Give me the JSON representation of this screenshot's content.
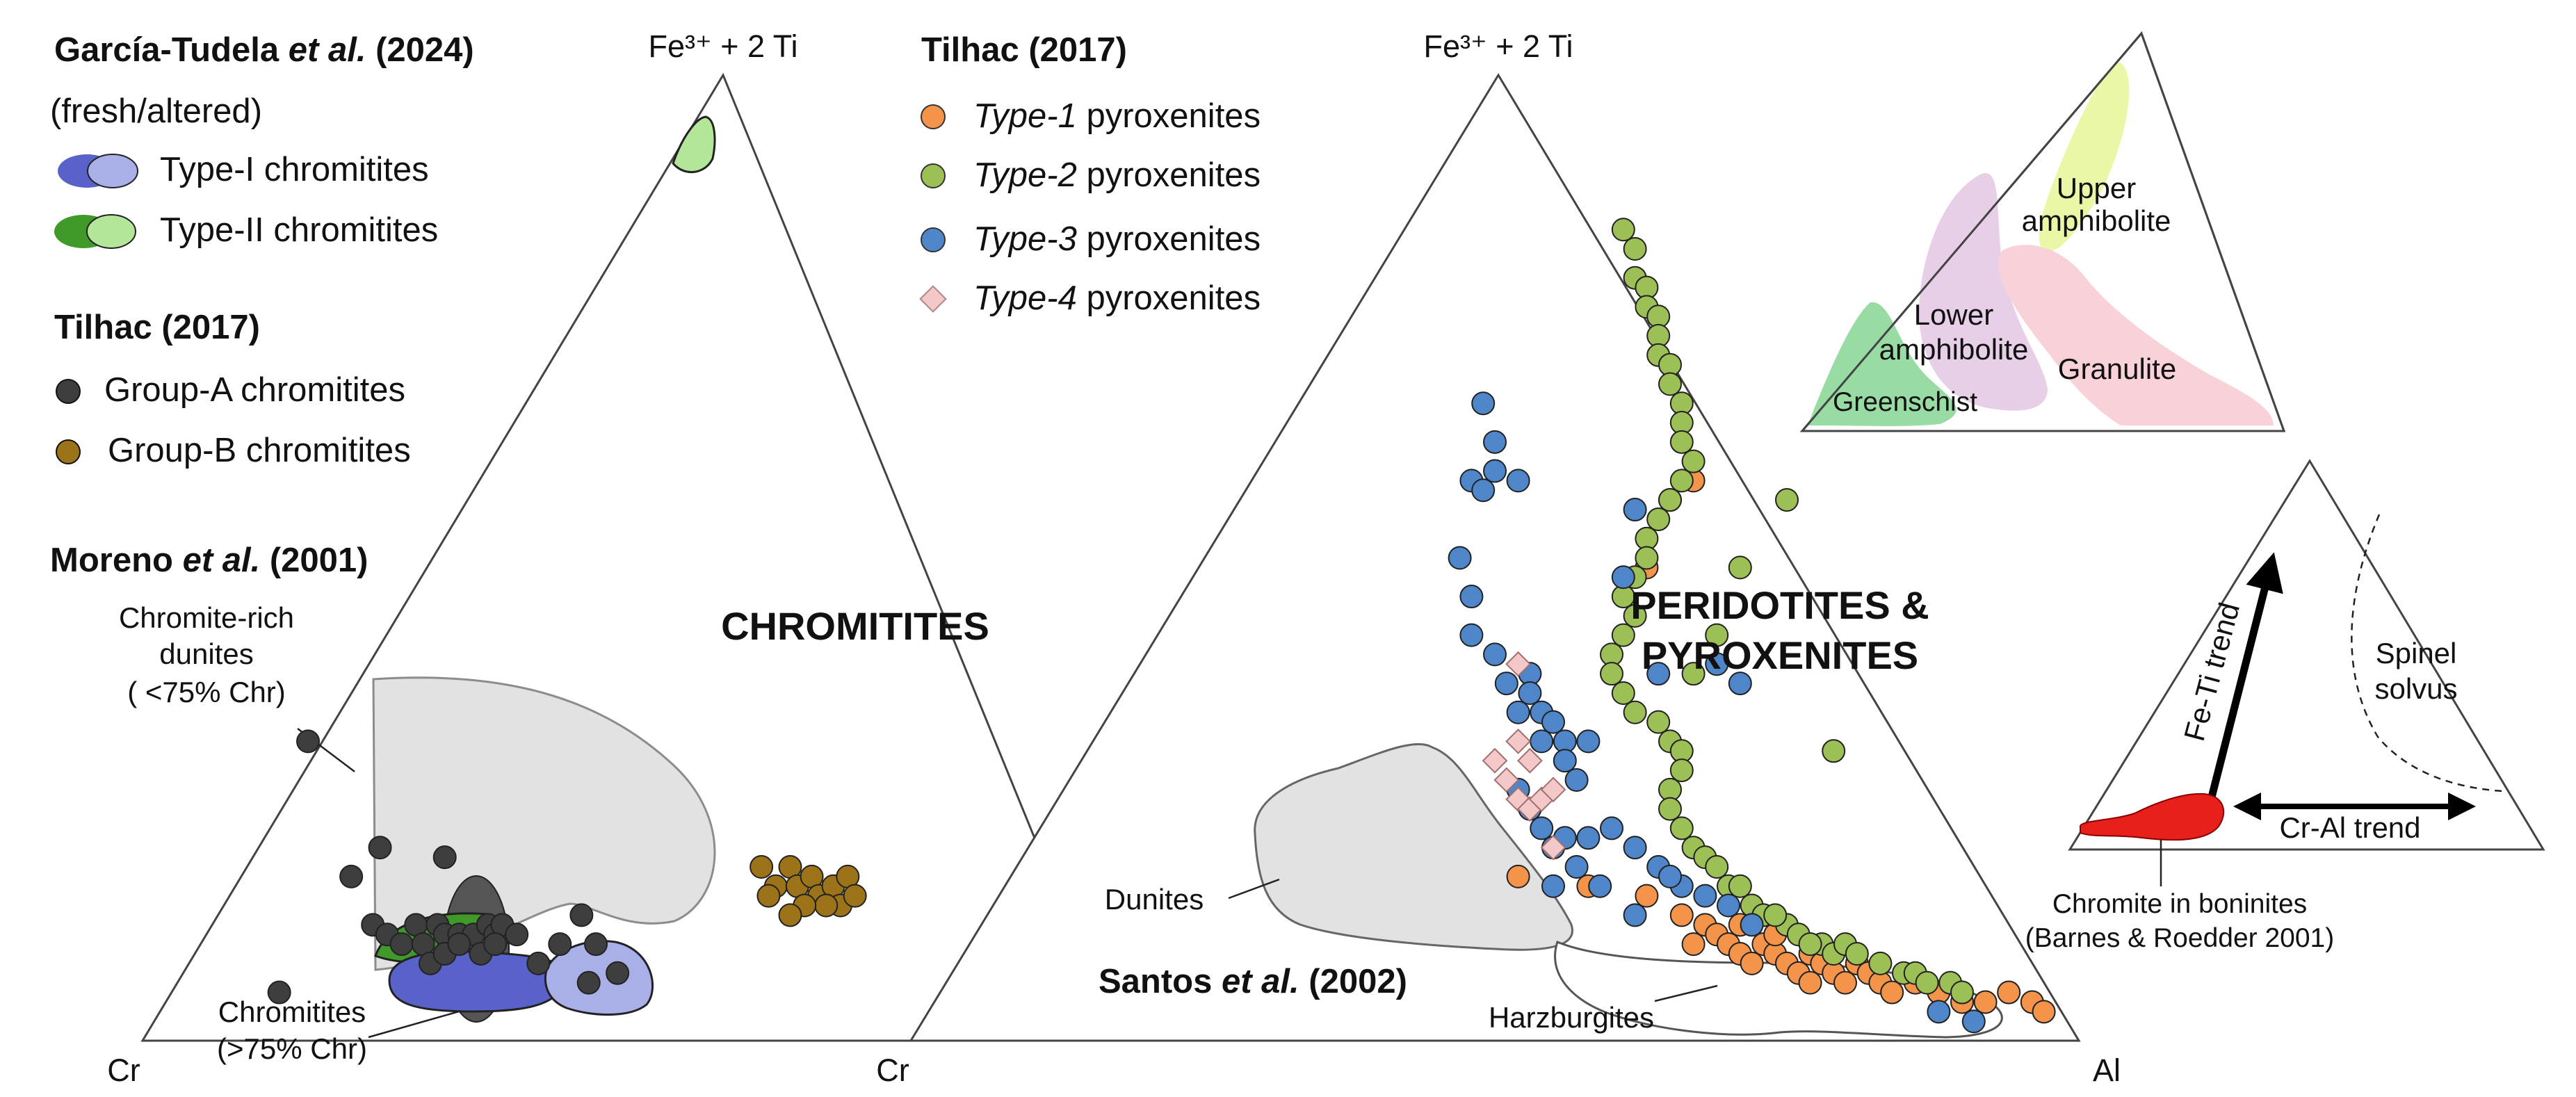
{
  "chart_data": {
    "type": "scatter",
    "diagram_kind": "ternary",
    "colors": {
      "type1": "#f4934a",
      "type2": "#9cc056",
      "type3": "#4f86c9",
      "type4": "#f4c8c8",
      "groupA": "#3e3e3e",
      "groupB": "#9c7318",
      "typeI_fresh": "#5962c8",
      "typeI_altered": "#a9b0e8",
      "typeII_fresh": "#3f9a2a",
      "typeII_altered": "#b4e69a",
      "field": "#e2e2e2"
    },
    "left_diagram": {
      "label": "CHROMITITES",
      "apex_labels": {
        "top": "Fe³⁺ + 2 Ti",
        "left": "Cr",
        "right": "Cr"
      },
      "legend": {
        "garcia": {
          "title": "García-Tudela",
          "title_italic": "et al.",
          "title_year": "(2024)",
          "subtitle": "(fresh/altered)",
          "items": [
            "Type-I chromitites",
            "Type-II chromitites"
          ]
        },
        "tilhac": {
          "title": "Tilhac (2017)",
          "items": [
            "Group-A chromitites",
            "Group-B chromitites"
          ]
        },
        "moreno": {
          "title": "Moreno",
          "title_italic": "et al.",
          "title_year": "(2001)"
        }
      },
      "annotations": {
        "field_dunites": [
          "Chromite-rich",
          "dunites",
          "( <75% Chr)"
        ],
        "field_chromitites": [
          "Chromitites",
          "(>75% Chr)"
        ]
      },
      "series": [
        {
          "name": "Group-A chromitites",
          "color_key": "groupA",
          "points": [
            [
              0.19,
              0.05
            ],
            [
              0.23,
              0.31
            ],
            [
              0.29,
              0.17
            ],
            [
              0.33,
              0.2
            ],
            [
              0.42,
              0.19
            ],
            [
              0.32,
              0.12
            ],
            [
              0.34,
              0.11
            ],
            [
              0.36,
              0.1
            ],
            [
              0.38,
              0.12
            ],
            [
              0.39,
              0.1
            ],
            [
              0.41,
              0.12
            ],
            [
              0.42,
              0.11
            ],
            [
              0.44,
              0.11
            ],
            [
              0.46,
              0.11
            ],
            [
              0.48,
              0.12
            ],
            [
              0.49,
              0.11
            ],
            [
              0.5,
              0.12
            ],
            [
              0.4,
              0.08
            ],
            [
              0.42,
              0.09
            ],
            [
              0.44,
              0.1
            ],
            [
              0.47,
              0.09
            ],
            [
              0.49,
              0.1
            ],
            [
              0.52,
              0.11
            ],
            [
              0.55,
              0.08
            ],
            [
              0.58,
              0.1
            ],
            [
              0.61,
              0.13
            ],
            [
              0.63,
              0.1
            ],
            [
              0.66,
              0.07
            ],
            [
              0.62,
              0.06
            ]
          ]
        },
        {
          "name": "Group-B chromitites",
          "color_key": "groupB",
          "points": [
            [
              0.86,
              0.18
            ],
            [
              0.88,
              0.16
            ],
            [
              0.9,
              0.18
            ],
            [
              0.91,
              0.16
            ],
            [
              0.93,
              0.17
            ],
            [
              0.94,
              0.15
            ],
            [
              0.96,
              0.16
            ],
            [
              0.97,
              0.14
            ],
            [
              0.98,
              0.17
            ],
            [
              0.99,
              0.15
            ],
            [
              0.95,
              0.14
            ],
            [
              0.92,
              0.14
            ],
            [
              0.9,
              0.13
            ],
            [
              0.87,
              0.15
            ]
          ]
        }
      ]
    },
    "right_diagram": {
      "label": [
        "PERIDOTITES &",
        "PYROXENITES"
      ],
      "apex_labels": {
        "top": "Fe³⁺ + 2 Ti",
        "left": "Cr",
        "right": "Al"
      },
      "legend": {
        "tilhac": {
          "title": "Tilhac (2017)",
          "items": [
            {
              "italic": "Type-1",
              "rest": " pyroxenites",
              "color_key": "type1"
            },
            {
              "italic": "Type-2",
              "rest": " pyroxenites",
              "color_key": "type2"
            },
            {
              "italic": "Type-3",
              "rest": " pyroxenites",
              "color_key": "type3"
            },
            {
              "italic": "Type-4",
              "rest": " pyroxenites",
              "color_key": "type4"
            }
          ]
        }
      },
      "annotations": {
        "dunites": "Dunites",
        "harzburgites": "Harzburgites",
        "source": {
          "title": "Santos",
          "title_italic": "et al.",
          "title_year": "(2002)"
        }
      },
      "series": [
        {
          "name": "Type-1 pyroxenites",
          "color_key": "type1",
          "points": [
            [
              0.52,
              0.17
            ],
            [
              0.58,
              0.16
            ],
            [
              0.63,
              0.15
            ],
            [
              0.66,
              0.13
            ],
            [
              0.68,
              0.12
            ],
            [
              0.69,
              0.11
            ],
            [
              0.7,
              0.1
            ],
            [
              0.71,
              0.09
            ],
            [
              0.72,
              0.08
            ],
            [
              0.73,
              0.1
            ],
            [
              0.74,
              0.09
            ],
            [
              0.75,
              0.08
            ],
            [
              0.76,
              0.07
            ],
            [
              0.77,
              0.09
            ],
            [
              0.78,
              0.08
            ],
            [
              0.79,
              0.07
            ],
            [
              0.8,
              0.06
            ],
            [
              0.81,
              0.08
            ],
            [
              0.82,
              0.07
            ],
            [
              0.83,
              0.06
            ],
            [
              0.84,
              0.05
            ],
            [
              0.86,
              0.06
            ],
            [
              0.88,
              0.05
            ],
            [
              0.9,
              0.04
            ],
            [
              0.92,
              0.04
            ],
            [
              0.94,
              0.05
            ],
            [
              0.96,
              0.04
            ],
            [
              0.97,
              0.03
            ],
            [
              0.67,
              0.1
            ],
            [
              0.71,
              0.12
            ],
            [
              0.74,
              0.11
            ],
            [
              0.77,
              0.06
            ],
            [
              0.63,
              0.49
            ],
            [
              0.65,
              0.56
            ],
            [
              0.67,
              0.58
            ]
          ]
        },
        {
          "name": "Type-2 pyroxenites",
          "color_key": "type2",
          "points": [
            [
              0.61,
              0.84
            ],
            [
              0.62,
              0.82
            ],
            [
              0.62,
              0.79
            ],
            [
              0.63,
              0.78
            ],
            [
              0.63,
              0.76
            ],
            [
              0.64,
              0.75
            ],
            [
              0.64,
              0.73
            ],
            [
              0.64,
              0.71
            ],
            [
              0.65,
              0.7
            ],
            [
              0.65,
              0.68
            ],
            [
              0.66,
              0.66
            ],
            [
              0.66,
              0.64
            ],
            [
              0.66,
              0.62
            ],
            [
              0.67,
              0.6
            ],
            [
              0.66,
              0.58
            ],
            [
              0.65,
              0.56
            ],
            [
              0.64,
              0.54
            ],
            [
              0.63,
              0.52
            ],
            [
              0.63,
              0.5
            ],
            [
              0.62,
              0.48
            ],
            [
              0.61,
              0.46
            ],
            [
              0.62,
              0.44
            ],
            [
              0.61,
              0.42
            ],
            [
              0.6,
              0.4
            ],
            [
              0.6,
              0.38
            ],
            [
              0.61,
              0.36
            ],
            [
              0.62,
              0.34
            ],
            [
              0.64,
              0.33
            ],
            [
              0.65,
              0.31
            ],
            [
              0.66,
              0.3
            ],
            [
              0.66,
              0.28
            ],
            [
              0.65,
              0.26
            ],
            [
              0.65,
              0.24
            ],
            [
              0.66,
              0.22
            ],
            [
              0.67,
              0.2
            ],
            [
              0.68,
              0.19
            ],
            [
              0.69,
              0.18
            ],
            [
              0.7,
              0.16
            ],
            [
              0.72,
              0.14
            ],
            [
              0.73,
              0.13
            ],
            [
              0.75,
              0.12
            ],
            [
              0.76,
              0.11
            ],
            [
              0.78,
              0.1
            ],
            [
              0.79,
              0.09
            ],
            [
              0.8,
              0.1
            ],
            [
              0.81,
              0.09
            ],
            [
              0.83,
              0.08
            ],
            [
              0.85,
              0.07
            ],
            [
              0.86,
              0.07
            ],
            [
              0.87,
              0.06
            ],
            [
              0.89,
              0.06
            ],
            [
              0.9,
              0.05
            ],
            [
              0.75,
              0.56
            ],
            [
              0.71,
              0.49
            ],
            [
              0.79,
              0.3
            ],
            [
              0.67,
              0.38
            ],
            [
              0.69,
              0.42
            ],
            [
              0.71,
              0.16
            ],
            [
              0.74,
              0.13
            ],
            [
              0.77,
              0.1
            ]
          ]
        },
        {
          "name": "Type-3 pyroxenites",
          "color_key": "type3",
          "points": [
            [
              0.49,
              0.66
            ],
            [
              0.5,
              0.62
            ],
            [
              0.5,
              0.59
            ],
            [
              0.52,
              0.58
            ],
            [
              0.48,
              0.58
            ],
            [
              0.49,
              0.57
            ],
            [
              0.47,
              0.5
            ],
            [
              0.48,
              0.46
            ],
            [
              0.48,
              0.42
            ],
            [
              0.5,
              0.4
            ],
            [
              0.51,
              0.37
            ],
            [
              0.53,
              0.38
            ],
            [
              0.53,
              0.36
            ],
            [
              0.54,
              0.34
            ],
            [
              0.52,
              0.34
            ],
            [
              0.55,
              0.33
            ],
            [
              0.56,
              0.31
            ],
            [
              0.58,
              0.31
            ],
            [
              0.54,
              0.31
            ],
            [
              0.56,
              0.29
            ],
            [
              0.57,
              0.27
            ],
            [
              0.52,
              0.26
            ],
            [
              0.53,
              0.24
            ],
            [
              0.54,
              0.22
            ],
            [
              0.55,
              0.2
            ],
            [
              0.56,
              0.21
            ],
            [
              0.58,
              0.21
            ],
            [
              0.6,
              0.22
            ],
            [
              0.62,
              0.2
            ],
            [
              0.64,
              0.18
            ],
            [
              0.66,
              0.16
            ],
            [
              0.68,
              0.15
            ],
            [
              0.7,
              0.14
            ],
            [
              0.72,
              0.12
            ],
            [
              0.55,
              0.16
            ],
            [
              0.57,
              0.18
            ],
            [
              0.59,
              0.16
            ],
            [
              0.62,
              0.13
            ],
            [
              0.65,
              0.17
            ],
            [
              0.61,
              0.48
            ],
            [
              0.62,
              0.55
            ],
            [
              0.64,
              0.38
            ],
            [
              0.88,
              0.03
            ],
            [
              0.91,
              0.02
            ],
            [
              0.69,
              0.39
            ],
            [
              0.71,
              0.37
            ]
          ]
        },
        {
          "name": "Type-4 pyroxenites",
          "color_key": "type4",
          "points": [
            [
              0.52,
              0.39
            ],
            [
              0.52,
              0.31
            ],
            [
              0.5,
              0.29
            ],
            [
              0.51,
              0.27
            ],
            [
              0.53,
              0.29
            ],
            [
              0.52,
              0.25
            ],
            [
              0.53,
              0.24
            ],
            [
              0.54,
              0.25
            ],
            [
              0.55,
              0.26
            ],
            [
              0.55,
              0.2
            ]
          ]
        }
      ]
    },
    "inset_metamorphic": {
      "labels": {
        "upper": [
          "Upper",
          "amphibolite"
        ],
        "lower": [
          "Lower",
          "amphibolite"
        ],
        "granulite": "Granulite",
        "greenschist": "Greenschist"
      },
      "colors": {
        "upper": "#e9f7a6",
        "lower": "#e8cfe8",
        "granulite": "#f8d2d8",
        "greenschist": "#98dca3"
      }
    },
    "inset_trends": {
      "labels": {
        "fe_ti": "Fe-Ti trend",
        "cr_al": "Cr-Al trend",
        "solvus": [
          "Spinel",
          "solvus"
        ],
        "caption": [
          "Chromite in boninites",
          "(Barnes & Roedder 2001)"
        ]
      },
      "colors": {
        "chromite": "#e8201c"
      }
    }
  }
}
